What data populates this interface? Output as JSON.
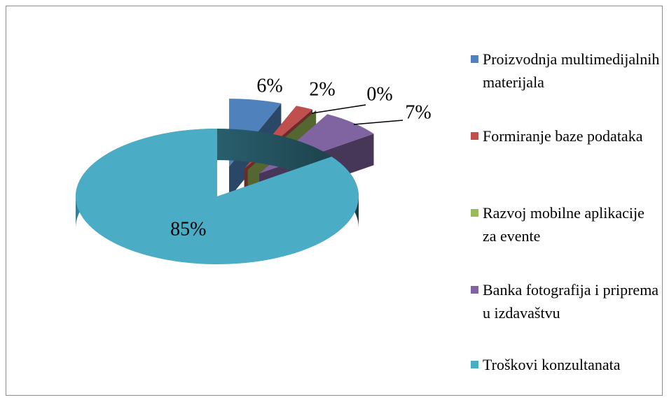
{
  "chart_data": {
    "type": "pie",
    "categories": [
      "Proizvodnja multimedijalnih materijala",
      "Formiranje baze podataka",
      "Razvoj mobilne aplikacije za evente",
      "Banka fotografija i priprema u izdavaštvu",
      "Troškovi konzultanata"
    ],
    "values": [
      6,
      2,
      0,
      7,
      85
    ],
    "value_labels": [
      "6%",
      "2%",
      "0%",
      "7%",
      "85%"
    ],
    "colors": [
      "#4f81bd",
      "#c0504d",
      "#9bbb59",
      "#8064a2",
      "#4bacc6"
    ],
    "legend": "right"
  }
}
